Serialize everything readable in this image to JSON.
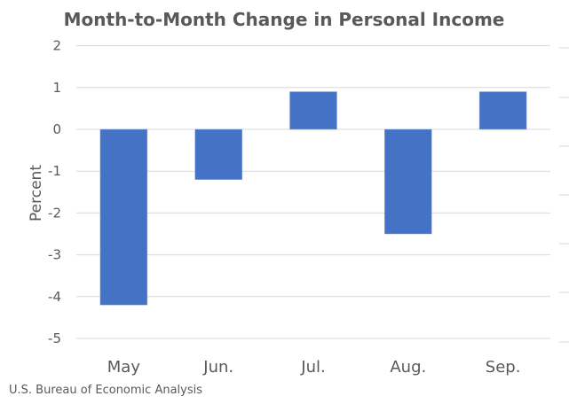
{
  "chart_data": {
    "type": "bar",
    "title": "Month-to-Month Change in Personal Income",
    "categories": [
      "May",
      "Jun.",
      "Jul.",
      "Aug.",
      "Sep."
    ],
    "values": [
      -4.2,
      -1.2,
      0.9,
      -2.5,
      0.9
    ],
    "xlabel": "",
    "ylabel": "Percent",
    "ylim": [
      -5,
      2
    ],
    "yticks": [
      2,
      1,
      0,
      -1,
      -2,
      -3,
      -4,
      -5
    ],
    "grid": true,
    "legend": null,
    "bar_color": "#4472C4",
    "source": "U.S. Bureau of Economic Analysis"
  }
}
